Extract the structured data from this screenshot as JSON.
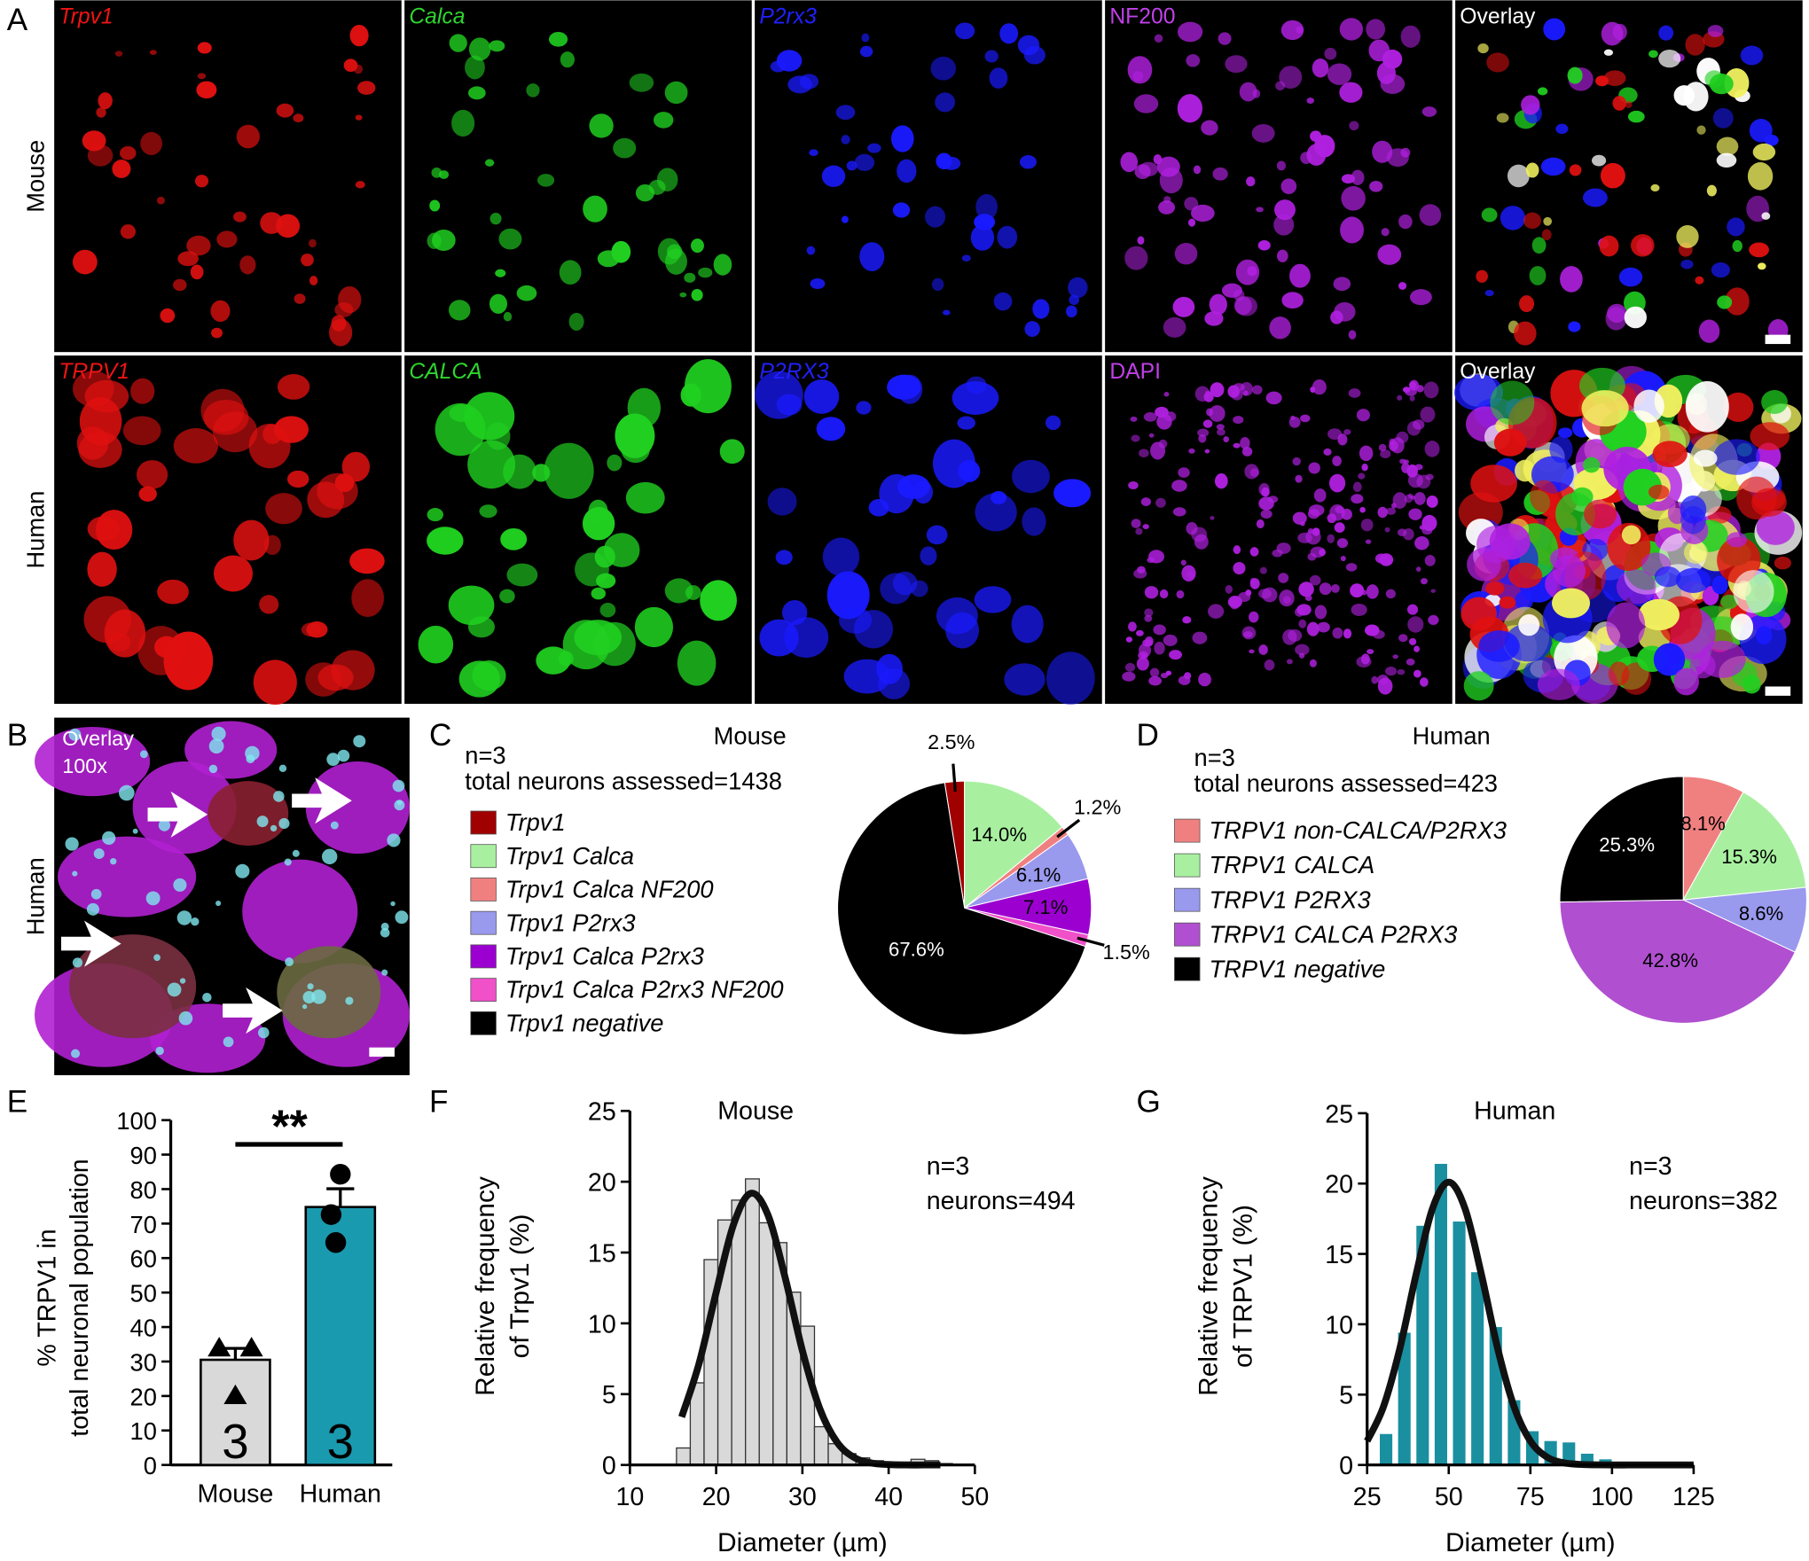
{
  "panel_labels": [
    "A",
    "B",
    "C",
    "D",
    "E",
    "F",
    "G"
  ],
  "panel_a": {
    "row_labels": [
      "Mouse",
      "Human"
    ],
    "channels": [
      [
        "Trpv1",
        "Calca",
        "P2rx3",
        "NF200",
        "Overlay"
      ],
      [
        "TRPV1",
        "CALCA",
        "P2RX3",
        "DAPI",
        "Overlay"
      ]
    ]
  },
  "panel_b": {
    "row_label": "Human",
    "overlay": "Overlay",
    "magnification": "100x"
  },
  "chart_data": [
    {
      "type": "pie",
      "title": "Mouse",
      "annotations": [
        "n=3",
        "total neurons assessed=1438"
      ],
      "categories": [
        "Trpv1",
        "Trpv1 Calca",
        "Trpv1 Calca NF200",
        "Trpv1 P2rx3",
        "Trpv1 Calca P2rx3",
        "Trpv1 Calca P2rx3 NF200",
        "Trpv1 negative"
      ],
      "values": [
        2.5,
        14.0,
        1.2,
        6.1,
        7.1,
        1.5,
        67.6
      ],
      "value_labels": [
        "2.5%",
        "14.0%",
        "1.2%",
        "6.1%",
        "7.1%",
        "1.5%",
        "67.6%"
      ],
      "colors": [
        "#a00000",
        "#a8f0a0",
        "#f08080",
        "#9999ee",
        "#9b00d0",
        "#f050c8",
        "#000000"
      ]
    },
    {
      "type": "pie",
      "title": "Human",
      "annotations": [
        "n=3",
        "total neurons assessed=423"
      ],
      "categories": [
        "TRPV1 non-CALCA/P2RX3",
        "TRPV1 CALCA",
        "TRPV1 P2RX3",
        "TRPV1 CALCA P2RX3",
        "TRPV1 negative"
      ],
      "values": [
        8.1,
        15.3,
        8.6,
        42.8,
        25.3
      ],
      "value_labels": [
        "8.1%",
        "15.3%",
        "8.6%",
        "42.8%",
        "25.3%"
      ],
      "colors": [
        "#f08080",
        "#a8f0a0",
        "#9999ee",
        "#b050d0",
        "#000000"
      ]
    },
    {
      "type": "bar",
      "ylabel": [
        "% TRPV1 in",
        "total neuronal population"
      ],
      "categories": [
        "Mouse",
        "Human"
      ],
      "values": [
        30.5,
        74.8
      ],
      "errors": [
        3.3,
        5.3
      ],
      "points": [
        [
          33.8,
          33.8,
          20
        ],
        [
          84.3,
          72.6,
          64.5
        ]
      ],
      "n": [
        3,
        3
      ],
      "colors": [
        "#d9d9d9",
        "#1a9aaf"
      ],
      "significance": "**",
      "ylim": [
        0,
        100
      ],
      "yticks": [
        0,
        10,
        20,
        30,
        40,
        50,
        60,
        70,
        80,
        90,
        100
      ]
    },
    {
      "type": "histogram",
      "title": "Mouse",
      "annotations": [
        "n=3",
        "neurons=494"
      ],
      "xlabel": "Diameter (µm)",
      "ylabel": [
        "Relative frequency",
        "of Trpv1 (%)"
      ],
      "bins": [
        15.4,
        17.0,
        18.6,
        20.2,
        21.8,
        23.4,
        25.0,
        26.6,
        28.2,
        29.8,
        31.4,
        33.0,
        34.6,
        36.2,
        37.8,
        39.4,
        41.0,
        42.6,
        44.2,
        45.8,
        47.4
      ],
      "values": [
        1.2,
        5.8,
        14.5,
        17.3,
        18.7,
        20.2,
        17.1,
        15.7,
        12.2,
        9.8,
        2.7,
        1.5,
        0.8,
        0.5,
        0.3,
        0.2,
        0.2,
        0.4,
        0.3,
        0.1
      ],
      "color": "#d9d9d9",
      "fit": {
        "x": [
          16,
          18,
          20,
          22,
          24,
          26,
          28,
          30,
          32,
          34,
          36,
          38,
          40,
          42,
          44,
          46
        ],
        "values": [
          3.39,
          7.13,
          12.19,
          16.95,
          19.18,
          17.66,
          13.23,
          8.07,
          4.0,
          1.62,
          0.53,
          0.14,
          0.03,
          0,
          0,
          0
        ]
      },
      "xlim": [
        10,
        50
      ],
      "xticks": [
        10,
        20,
        30,
        40,
        50
      ],
      "ylim": [
        0,
        25
      ],
      "yticks": [
        0,
        5,
        10,
        15,
        20,
        25
      ]
    },
    {
      "type": "histogram",
      "title": "Human",
      "annotations": [
        "n=3",
        "neurons=382"
      ],
      "xlabel": "Diameter (µm)",
      "ylabel": [
        "Relative frequency",
        "of TRPV1 (%)"
      ],
      "bins": [
        28.0,
        33.6,
        39.2,
        44.8,
        50.4,
        56.0,
        61.6,
        67.2,
        72.8,
        78.4,
        84.0,
        89.6,
        95.2,
        100.8,
        106.4
      ],
      "values": [
        2.2,
        9.4,
        17.0,
        21.4,
        17.3,
        13.7,
        9.8,
        4.6,
        2.4,
        1.7,
        1.6,
        0.8,
        0.4,
        0.1
      ],
      "color": "#1a8fa0",
      "fit": {
        "x": [
          25,
          30,
          35,
          40,
          45,
          50,
          55,
          60,
          65,
          70,
          75,
          80,
          85,
          90,
          95,
          100,
          105,
          110,
          115,
          120,
          125
        ],
        "values": [
          1.7,
          4.14,
          8.26,
          13.54,
          18.21,
          20.1,
          18.21,
          13.54,
          8.26,
          4.14,
          1.7,
          0.57,
          0.16,
          0.04,
          0.01,
          0,
          0,
          0,
          0,
          0,
          0
        ]
      },
      "xlim": [
        25,
        125
      ],
      "xticks": [
        25,
        50,
        75,
        100,
        125
      ],
      "ylim": [
        0,
        25
      ],
      "yticks": [
        0,
        5,
        10,
        15,
        20,
        25
      ]
    }
  ]
}
